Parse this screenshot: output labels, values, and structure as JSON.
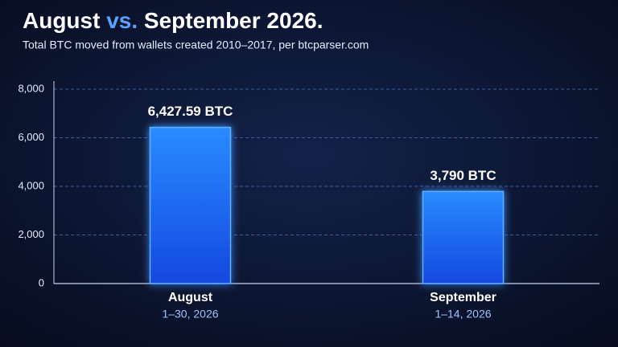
{
  "chart_data": {
    "type": "bar",
    "title": [
      {
        "text": "August "
      },
      {
        "text": "vs.",
        "color": "#5aa2ff"
      },
      {
        "text": " September 2026."
      }
    ],
    "subtitle": "Total BTC moved from wallets created 2010–2017, per btcparser.com",
    "categories": [
      "August",
      "September"
    ],
    "category_sublabels": [
      "1–30, 2026",
      "1–14, 2026"
    ],
    "values": [
      6427.59,
      3790
    ],
    "value_labels": [
      "6,427.59 BTC",
      "3,790 BTC"
    ],
    "color": "#1f6bff",
    "ylim": [
      0,
      8000
    ],
    "yticks": [
      0,
      {
        "value": 2000,
        "label": "2,000"
      },
      {
        "value": 4000,
        "label": "4,000"
      },
      {
        "value": 6000,
        "label": "6,000"
      },
      {
        "value": 8000,
        "label": "8,000"
      }
    ],
    "grid": true
  }
}
